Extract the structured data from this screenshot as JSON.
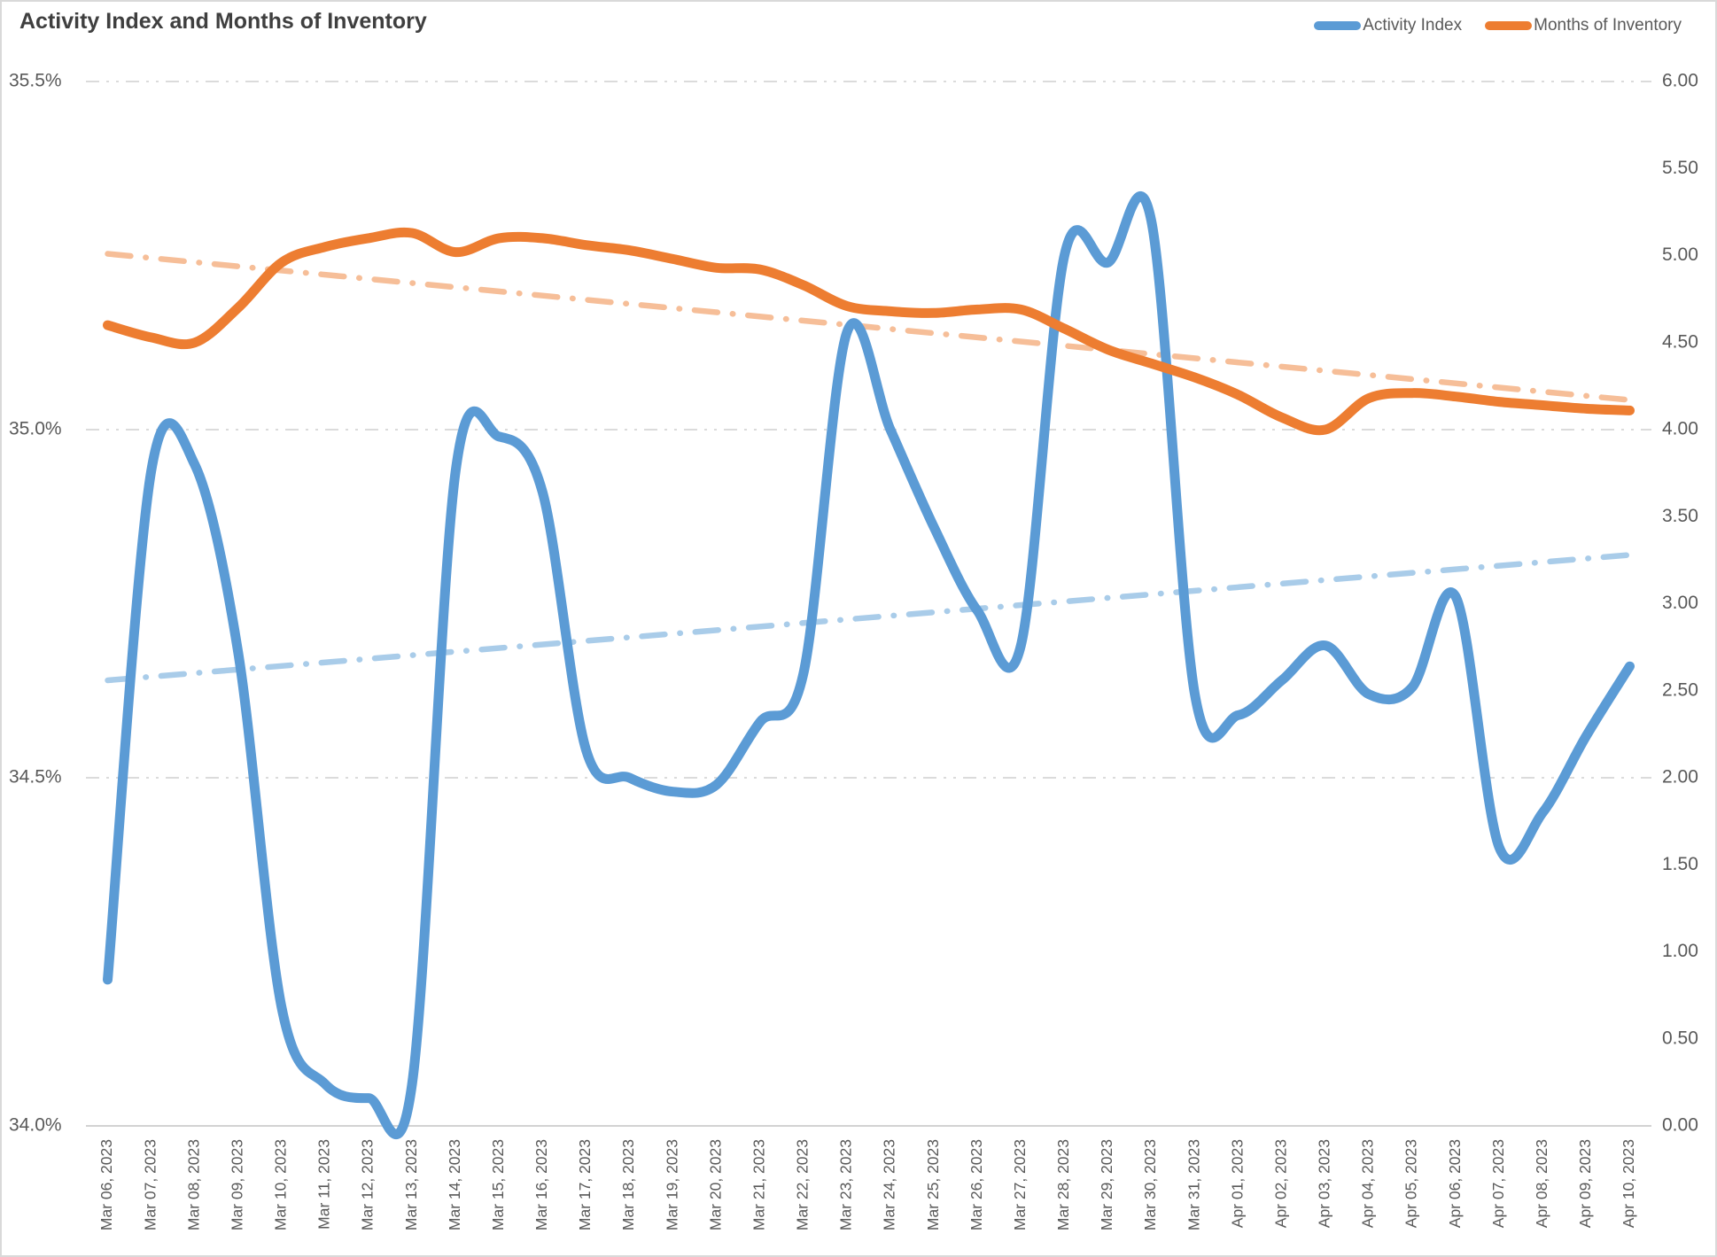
{
  "title": "Activity Index and Months of Inventory",
  "legend": {
    "items": [
      {
        "label": "Activity Index",
        "color": "#5B9BD5"
      },
      {
        "label": "Months of Inventory",
        "color": "#ED7D31"
      }
    ]
  },
  "chart_data": {
    "type": "line",
    "title": "Activity Index and Months of Inventory",
    "grid": {
      "on": true,
      "gridline_color": "#dbdbdb",
      "axis_line_color": "#d2d2d2",
      "label_color": "#595959"
    },
    "legend_position": "top-right",
    "categories": [
      "Mar 06, 2023",
      "Mar 07, 2023",
      "Mar 08, 2023",
      "Mar 09, 2023",
      "Mar 10, 2023",
      "Mar 11, 2023",
      "Mar 12, 2023",
      "Mar 13, 2023",
      "Mar 14, 2023",
      "Mar 15, 2023",
      "Mar 16, 2023",
      "Mar 17, 2023",
      "Mar 18, 2023",
      "Mar 19, 2023",
      "Mar 20, 2023",
      "Mar 21, 2023",
      "Mar 22, 2023",
      "Mar 23, 2023",
      "Mar 24, 2023",
      "Mar 25, 2023",
      "Mar 26, 2023",
      "Mar 27, 2023",
      "Mar 28, 2023",
      "Mar 29, 2023",
      "Mar 30, 2023",
      "Mar 31, 2023",
      "Apr 01, 2023",
      "Apr 02, 2023",
      "Apr 03, 2023",
      "Apr 04, 2023",
      "Apr 05, 2023",
      "Apr 06, 2023",
      "Apr 07, 2023",
      "Apr 08, 2023",
      "Apr 09, 2023",
      "Apr 10, 2023"
    ],
    "series": [
      {
        "name": "Activity Index",
        "axis": "left",
        "color": "#5B9BD5",
        "smooth": true,
        "values": [
          34.21,
          34.94,
          34.95,
          34.68,
          34.17,
          34.06,
          34.04,
          34.06,
          34.94,
          34.99,
          34.91,
          34.54,
          34.5,
          34.48,
          34.49,
          34.58,
          34.65,
          35.14,
          35.0,
          34.86,
          34.74,
          34.69,
          35.25,
          35.24,
          35.3,
          34.62,
          34.59,
          34.64,
          34.69,
          34.62,
          34.63,
          34.76,
          34.4,
          34.45,
          34.56,
          34.66
        ]
      },
      {
        "name": "Months of Inventory",
        "axis": "right",
        "color": "#ED7D31",
        "smooth": true,
        "values": [
          4.6,
          4.53,
          4.5,
          4.7,
          4.96,
          5.05,
          5.1,
          5.13,
          5.02,
          5.1,
          5.1,
          5.06,
          5.03,
          4.98,
          4.93,
          4.92,
          4.83,
          4.71,
          4.68,
          4.67,
          4.69,
          4.69,
          4.58,
          4.46,
          4.38,
          4.3,
          4.2,
          4.07,
          4.0,
          4.18,
          4.21,
          4.19,
          4.16,
          4.14,
          4.12,
          4.11
        ]
      }
    ],
    "trendlines": [
      {
        "series": "Activity Index",
        "axis": "left",
        "color": "#A9CCE9",
        "style": "dash-dot",
        "start": 34.64,
        "end": 34.82
      },
      {
        "series": "Months of Inventory",
        "axis": "right",
        "color": "#F6BE98",
        "style": "dash-dot",
        "start": 5.01,
        "end": 4.17
      }
    ],
    "axes": {
      "left": {
        "min": 34.0,
        "max": 35.5,
        "tick_labels": [
          "35.5%",
          "35.0%",
          "34.5%",
          "34.0%"
        ],
        "tick_values": [
          35.5,
          35.0,
          34.5,
          34.0
        ]
      },
      "right": {
        "min": 0.0,
        "max": 6.0,
        "tick_labels": [
          "6.00",
          "5.50",
          "5.00",
          "4.50",
          "4.00",
          "3.50",
          "3.00",
          "2.50",
          "2.00",
          "1.50",
          "1.00",
          "0.50",
          "0.00"
        ],
        "tick_values": [
          6.0,
          5.5,
          5.0,
          4.5,
          4.0,
          3.5,
          3.0,
          2.5,
          2.0,
          1.5,
          1.0,
          0.5,
          0.0
        ]
      },
      "x": {
        "label_rotation_deg": -90
      }
    }
  }
}
